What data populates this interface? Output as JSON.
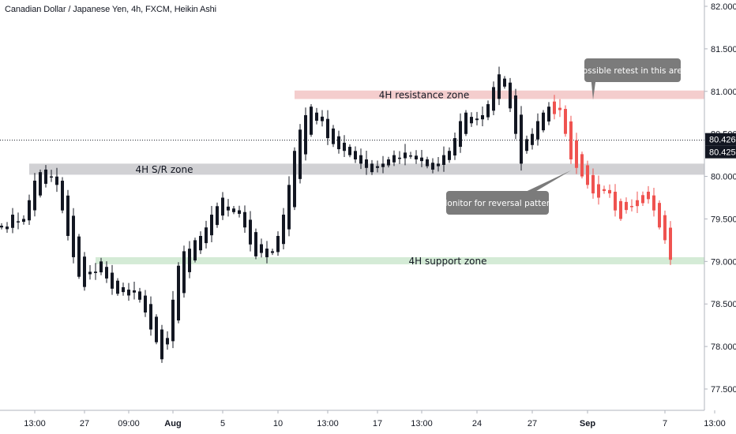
{
  "chart_data": {
    "type": "candlestick",
    "title": "Canadian Dollar / Japanese Yen, 4h, FXCM, Heikin Ashi",
    "ylim": [
      77.1,
      82.05
    ],
    "y_ticks": [
      "82.000",
      "81.500",
      "81.000",
      "80.500",
      "80.000",
      "79.500",
      "79.000",
      "78.500",
      "78.000",
      "77.500"
    ],
    "x_ticks": [
      {
        "label": "13:00",
        "idx": 6
      },
      {
        "label": "27",
        "idx": 15
      },
      {
        "label": "09:00",
        "idx": 23
      },
      {
        "label": "Aug",
        "idx": 31
      },
      {
        "label": "5",
        "idx": 40
      },
      {
        "label": "10",
        "idx": 50
      },
      {
        "label": "13:00",
        "idx": 59
      },
      {
        "label": "17",
        "idx": 68
      },
      {
        "label": "13:00",
        "idx": 76
      },
      {
        "label": "24",
        "idx": 86
      },
      {
        "label": "27",
        "idx": 96
      },
      {
        "label": "Sep",
        "idx": 106
      },
      {
        "label": "7",
        "idx": 120
      },
      {
        "label": "13:00",
        "idx": 129
      }
    ],
    "price_labels": {
      "current": "80.426",
      "secondary": "80.425"
    },
    "current_price": 80.426,
    "zones": [
      {
        "label": "4H resistance zone",
        "low": 80.91,
        "high": 81.01,
        "x_start_idx": 53,
        "color": "#f2c4c4"
      },
      {
        "label": "4H S/R zone",
        "low": 80.02,
        "high": 80.15,
        "x_start_idx": 5,
        "color": "#c9c9cc"
      },
      {
        "label": "4H support zone",
        "low": 78.97,
        "high": 79.05,
        "x_start_idx": 17,
        "color": "#cde8cf"
      }
    ],
    "callouts": [
      {
        "text": "Possible retest in this area",
        "target_idx": 107,
        "target_price": 80.9
      },
      {
        "text": "Monitor for reversal pattern",
        "target_idx": 103,
        "target_price": 80.07
      }
    ],
    "candle_colors": {
      "historical": "#131722",
      "projection": "#ef5350"
    },
    "close": [
      79.42,
      79.38,
      79.55,
      79.46,
      79.5,
      79.72,
      79.95,
      80.05,
      80.08,
      80.0,
      79.9,
      79.6,
      79.3,
      79.05,
      78.82,
      78.7,
      78.85,
      78.88,
      79.0,
      78.8,
      78.68,
      78.62,
      78.64,
      78.6,
      78.66,
      78.55,
      78.4,
      78.2,
      78.05,
      77.85,
      78.1,
      78.55,
      78.95,
      79.12,
      79.15,
      79.25,
      79.3,
      79.4,
      79.55,
      79.65,
      79.75,
      79.6,
      79.58,
      79.56,
      79.4,
      79.2,
      79.06,
      79.1,
      79.05,
      79.12,
      79.3,
      79.55,
      79.9,
      80.3,
      80.55,
      80.72,
      80.82,
      80.75,
      80.65,
      80.45,
      80.38,
      80.32,
      80.3,
      80.25,
      80.2,
      80.15,
      80.1,
      80.05,
      80.12,
      80.15,
      80.2,
      80.25,
      80.22,
      80.28,
      80.24,
      80.2,
      80.18,
      80.12,
      80.08,
      80.15,
      80.25,
      80.3,
      80.45,
      80.65,
      80.75,
      80.7,
      80.68,
      80.72,
      80.85,
      81.05,
      81.2,
      81.15,
      80.8,
      80.5,
      80.15,
      80.3,
      80.5,
      80.65,
      80.75,
      80.82,
      80.88,
      80.78,
      80.5,
      80.2,
      80.1,
      80.0,
      79.9,
      79.8,
      79.75,
      79.85,
      79.8,
      79.6,
      79.5,
      79.7,
      79.65,
      79.72,
      79.78,
      79.82,
      79.6,
      79.4,
      79.25,
      79.02
    ],
    "projection_start_idx": 100
  }
}
